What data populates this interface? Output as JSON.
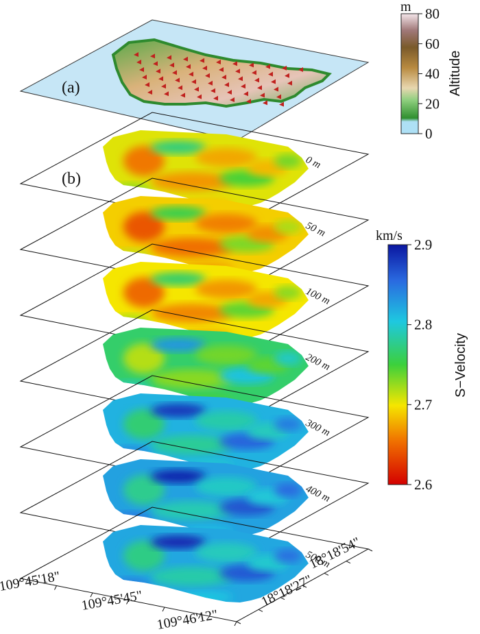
{
  "panels": {
    "a_label": "(a)",
    "b_label": "(b)"
  },
  "depth_slices": [
    {
      "label": "0 m",
      "level": 0.35
    },
    {
      "label": "50 m",
      "level": 0.3
    },
    {
      "label": "100 m",
      "level": 0.33
    },
    {
      "label": "200 m",
      "level": 0.55
    },
    {
      "label": "300 m",
      "level": 0.72
    },
    {
      "label": "400 m",
      "level": 0.75
    },
    {
      "label": "500 m",
      "level": 0.74
    }
  ],
  "altitude_colorbar": {
    "unit": "m",
    "title": "Altitude",
    "ticks": [
      "0",
      "20",
      "40",
      "60",
      "80"
    ],
    "range": [
      0,
      80
    ]
  },
  "velocity_colorbar": {
    "unit": "km/s",
    "title": "S−Velocity",
    "ticks": [
      "2.6",
      "2.7",
      "2.8",
      "2.9"
    ],
    "range": [
      2.6,
      2.9
    ]
  },
  "longitude_labels": [
    "109°45'18\"",
    "109°45'45\"",
    "109°46'12\""
  ],
  "latitude_labels": [
    "18°18'27\"",
    "18°18'54\""
  ],
  "colors": {
    "sea": "#c6e6f6",
    "land_low": "#3a9a3a",
    "land_mid": "#b08a3a",
    "land_high": "#e8c9c2",
    "station": "#c0211e"
  }
}
